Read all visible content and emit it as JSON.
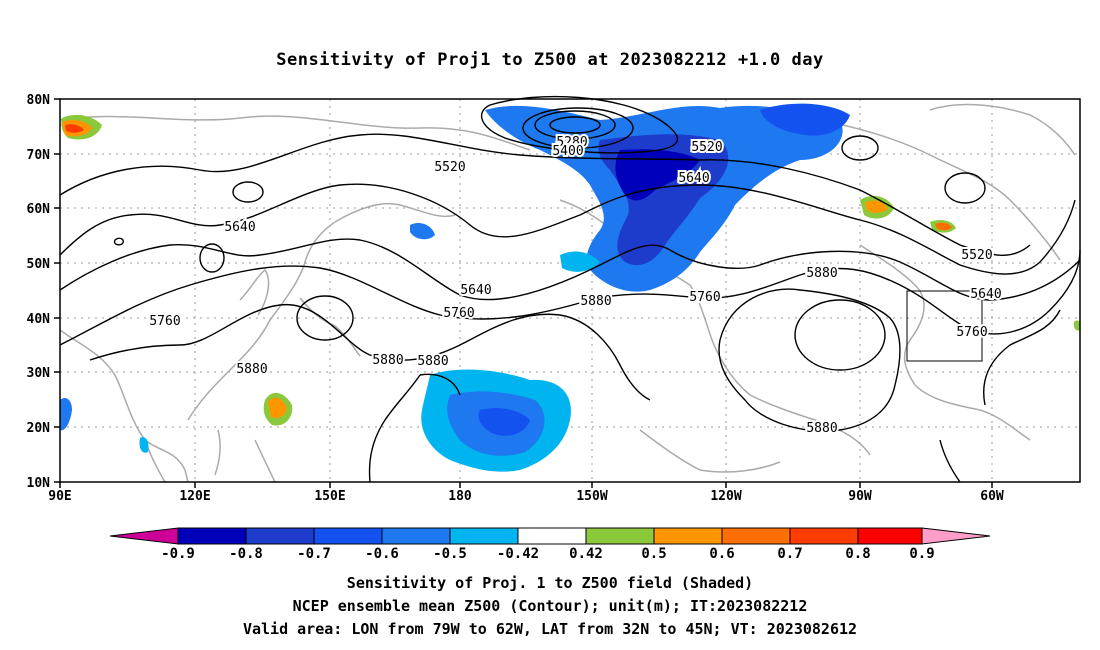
{
  "title": "Sensitivity of Proj1 to Z500 at 2023082212 +1.0 day",
  "lat_labels": [
    "80N",
    "70N",
    "60N",
    "50N",
    "40N",
    "30N",
    "20N",
    "10N"
  ],
  "lon_labels": [
    "90E",
    "120E",
    "150E",
    "180",
    "150W",
    "120W",
    "90W",
    "60W"
  ],
  "contour_labels": {
    "c1": "5280",
    "c2": "5400",
    "c3": "5520",
    "c4": "5520",
    "c5": "5640",
    "c6": "5640",
    "c7": "5640",
    "c8": "5760",
    "c9": "5760",
    "c10": "5760",
    "c11": "5880",
    "c12": "5880",
    "c13": "5880",
    "c14": "5880",
    "c15": "5880",
    "c16": "5520",
    "c17": "5640",
    "c18": "5760",
    "c19": "5880"
  },
  "colorbar": {
    "labels": [
      "-0.9",
      "-0.8",
      "-0.7",
      "-0.6",
      "-0.5",
      "-0.42",
      "0.42",
      "0.5",
      "0.6",
      "0.7",
      "0.8",
      "0.9"
    ],
    "colors": [
      "#cc0099",
      "#0000bb",
      "#1e3ccc",
      "#1452f0",
      "#1e78f0",
      "#00b4f0",
      "#ffffff",
      "#8cc83c",
      "#ff9600",
      "#ff6e00",
      "#ff3c00",
      "#ff0000",
      "#ff9ec8"
    ]
  },
  "captions": {
    "line1": "Sensitivity of Proj. 1 to Z500 field (Shaded)",
    "line2": "NCEP ensemble mean Z500 (Contour); unit(m); IT:2023082212",
    "line3": "Valid area: LON from 79W to 62W, LAT from 32N to 45N; VT: 2023082612"
  }
}
